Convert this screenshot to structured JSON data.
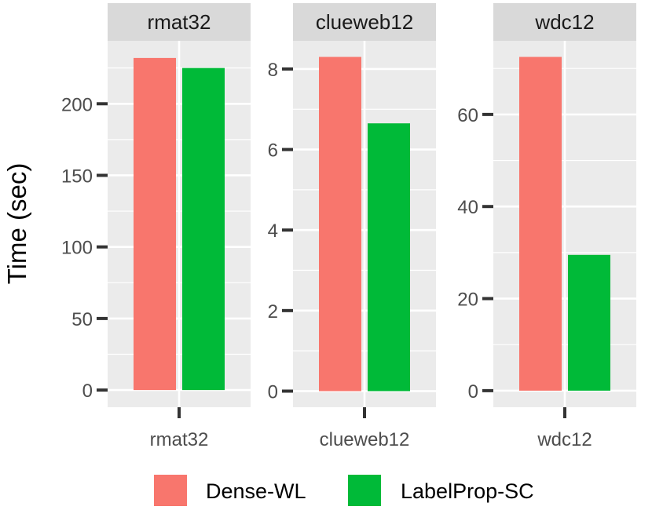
{
  "chart_data": {
    "type": "bar",
    "ylabel": "Time (sec)",
    "legend_position": "bottom",
    "series_names": [
      "Dense-WL",
      "LabelProp-SC"
    ],
    "colors": {
      "Dense-WL": "#F8766D",
      "LabelProp-SC": "#00BA38"
    },
    "panel_background": "#EBEBEB",
    "strip_background": "#D9D9D9",
    "panels": [
      {
        "strip": "rmat32",
        "category": "rmat32",
        "values": [
          232,
          225
        ],
        "ylim": [
          -12,
          244
        ],
        "yticks": [
          0,
          50,
          100,
          150,
          200
        ],
        "ytick_labels": [
          "0",
          "50",
          "100",
          "150",
          "200"
        ],
        "minor_ticks": [
          25,
          75,
          125,
          175,
          225
        ]
      },
      {
        "strip": "clueweb12",
        "category": "clueweb12",
        "values": [
          8.3,
          6.65
        ],
        "ylim": [
          -0.4,
          8.7
        ],
        "yticks": [
          0,
          2,
          4,
          6,
          8
        ],
        "ytick_labels": [
          "0",
          "2",
          "4",
          "6",
          "8"
        ],
        "minor_ticks": [
          1,
          3,
          5,
          7
        ]
      },
      {
        "strip": "wdc12",
        "category": "wdc12",
        "values": [
          72.5,
          29.5
        ],
        "ylim": [
          -3.6,
          76
        ],
        "yticks": [
          0,
          20,
          40,
          60
        ],
        "ytick_labels": [
          "0",
          "20",
          "40",
          "60"
        ],
        "minor_ticks": [
          10,
          30,
          50,
          70
        ]
      }
    ]
  }
}
